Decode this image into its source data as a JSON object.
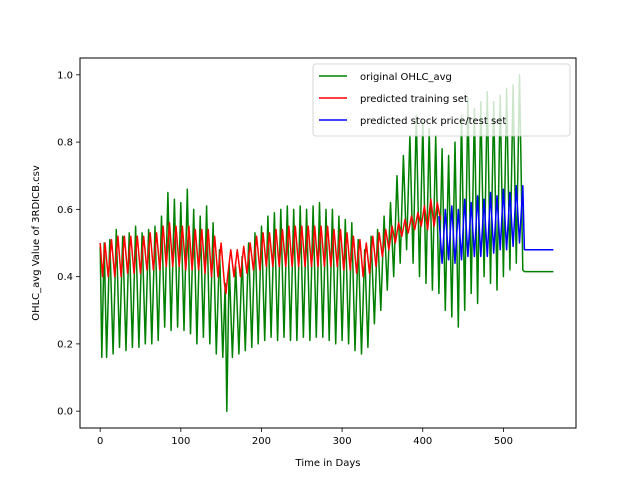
{
  "chart_data": {
    "type": "line",
    "xlabel": "Time in Days",
    "ylabel": "OHLC_avg Value of 3RDICB.csv",
    "xlim": [
      -25,
      590
    ],
    "ylim": [
      -0.05,
      1.05
    ],
    "xticks": [
      0,
      100,
      200,
      300,
      400,
      500
    ],
    "yticks": [
      0.0,
      0.2,
      0.4,
      0.6,
      0.8,
      1.0
    ],
    "grid": false,
    "legend_position": "top-right",
    "series": [
      {
        "name": "original OHLC_avg",
        "color": "#008000",
        "description_points": [
          [
            0,
            0.49
          ],
          [
            2,
            0.16
          ],
          [
            5,
            0.5
          ],
          [
            8,
            0.16
          ],
          [
            12,
            0.51
          ],
          [
            16,
            0.17
          ],
          [
            20,
            0.54
          ],
          [
            24,
            0.19
          ],
          [
            28,
            0.52
          ],
          [
            32,
            0.18
          ],
          [
            36,
            0.53
          ],
          [
            40,
            0.19
          ],
          [
            44,
            0.55
          ],
          [
            48,
            0.19
          ],
          [
            52,
            0.53
          ],
          [
            56,
            0.2
          ],
          [
            60,
            0.54
          ],
          [
            64,
            0.2
          ],
          [
            68,
            0.55
          ],
          [
            72,
            0.21
          ],
          [
            76,
            0.58
          ],
          [
            80,
            0.25
          ],
          [
            84,
            0.65
          ],
          [
            88,
            0.24
          ],
          [
            92,
            0.63
          ],
          [
            96,
            0.25
          ],
          [
            100,
            0.62
          ],
          [
            104,
            0.24
          ],
          [
            108,
            0.66
          ],
          [
            112,
            0.23
          ],
          [
            116,
            0.6
          ],
          [
            120,
            0.2
          ],
          [
            124,
            0.58
          ],
          [
            128,
            0.22
          ],
          [
            132,
            0.61
          ],
          [
            136,
            0.2
          ],
          [
            140,
            0.56
          ],
          [
            144,
            0.17
          ],
          [
            148,
            0.48
          ],
          [
            152,
            0.16
          ],
          [
            155,
            0.38
          ],
          [
            157,
            0.0
          ],
          [
            160,
            0.44
          ],
          [
            164,
            0.16
          ],
          [
            168,
            0.43
          ],
          [
            172,
            0.17
          ],
          [
            176,
            0.46
          ],
          [
            180,
            0.18
          ],
          [
            184,
            0.5
          ],
          [
            188,
            0.19
          ],
          [
            192,
            0.53
          ],
          [
            196,
            0.2
          ],
          [
            200,
            0.55
          ],
          [
            204,
            0.21
          ],
          [
            208,
            0.58
          ],
          [
            212,
            0.22
          ],
          [
            216,
            0.59
          ],
          [
            220,
            0.21
          ],
          [
            224,
            0.6
          ],
          [
            228,
            0.22
          ],
          [
            232,
            0.61
          ],
          [
            236,
            0.21
          ],
          [
            240,
            0.6
          ],
          [
            244,
            0.21
          ],
          [
            248,
            0.61
          ],
          [
            252,
            0.22
          ],
          [
            256,
            0.6
          ],
          [
            260,
            0.21
          ],
          [
            264,
            0.61
          ],
          [
            268,
            0.22
          ],
          [
            272,
            0.62
          ],
          [
            276,
            0.22
          ],
          [
            280,
            0.6
          ],
          [
            284,
            0.21
          ],
          [
            288,
            0.6
          ],
          [
            292,
            0.2
          ],
          [
            296,
            0.58
          ],
          [
            300,
            0.21
          ],
          [
            304,
            0.57
          ],
          [
            308,
            0.2
          ],
          [
            312,
            0.56
          ],
          [
            316,
            0.18
          ],
          [
            320,
            0.51
          ],
          [
            324,
            0.17
          ],
          [
            328,
            0.48
          ],
          [
            332,
            0.19
          ],
          [
            336,
            0.52
          ],
          [
            340,
            0.26
          ],
          [
            344,
            0.54
          ],
          [
            348,
            0.3
          ],
          [
            352,
            0.58
          ],
          [
            356,
            0.36
          ],
          [
            360,
            0.62
          ],
          [
            364,
            0.4
          ],
          [
            368,
            0.7
          ],
          [
            372,
            0.44
          ],
          [
            376,
            0.76
          ],
          [
            380,
            0.48
          ],
          [
            384,
            0.82
          ],
          [
            388,
            0.44
          ],
          [
            392,
            0.88
          ],
          [
            396,
            0.4
          ],
          [
            400,
            0.86
          ],
          [
            404,
            0.38
          ],
          [
            408,
            0.84
          ],
          [
            412,
            0.36
          ],
          [
            416,
            0.82
          ],
          [
            420,
            0.35
          ],
          [
            424,
            0.78
          ],
          [
            428,
            0.3
          ],
          [
            432,
            0.76
          ],
          [
            436,
            0.28
          ],
          [
            440,
            0.8
          ],
          [
            444,
            0.25
          ],
          [
            448,
            0.88
          ],
          [
            452,
            0.3
          ],
          [
            456,
            0.93
          ],
          [
            460,
            0.35
          ],
          [
            464,
            0.9
          ],
          [
            468,
            0.32
          ],
          [
            472,
            0.92
          ],
          [
            476,
            0.4
          ],
          [
            480,
            0.95
          ],
          [
            484,
            0.38
          ],
          [
            488,
            0.92
          ],
          [
            492,
            0.36
          ],
          [
            496,
            0.94
          ],
          [
            500,
            0.4
          ],
          [
            504,
            0.96
          ],
          [
            508,
            0.42
          ],
          [
            512,
            0.97
          ],
          [
            516,
            0.44
          ],
          [
            520,
            1.0
          ],
          [
            524,
            0.42
          ],
          [
            526,
            0.415
          ],
          [
            562,
            0.415
          ]
        ]
      },
      {
        "name": "predicted training set",
        "color": "#ff0000",
        "description_points": [
          [
            0,
            0.5
          ],
          [
            3,
            0.4
          ],
          [
            6,
            0.5
          ],
          [
            10,
            0.4
          ],
          [
            14,
            0.51
          ],
          [
            18,
            0.4
          ],
          [
            22,
            0.52
          ],
          [
            26,
            0.4
          ],
          [
            30,
            0.52
          ],
          [
            34,
            0.41
          ],
          [
            38,
            0.52
          ],
          [
            42,
            0.41
          ],
          [
            46,
            0.52
          ],
          [
            50,
            0.41
          ],
          [
            54,
            0.52
          ],
          [
            58,
            0.42
          ],
          [
            62,
            0.53
          ],
          [
            66,
            0.42
          ],
          [
            70,
            0.53
          ],
          [
            74,
            0.42
          ],
          [
            78,
            0.55
          ],
          [
            82,
            0.43
          ],
          [
            86,
            0.56
          ],
          [
            90,
            0.43
          ],
          [
            94,
            0.55
          ],
          [
            98,
            0.43
          ],
          [
            102,
            0.55
          ],
          [
            106,
            0.42
          ],
          [
            110,
            0.55
          ],
          [
            114,
            0.42
          ],
          [
            118,
            0.54
          ],
          [
            122,
            0.42
          ],
          [
            126,
            0.54
          ],
          [
            130,
            0.41
          ],
          [
            134,
            0.54
          ],
          [
            138,
            0.4
          ],
          [
            142,
            0.52
          ],
          [
            146,
            0.4
          ],
          [
            150,
            0.5
          ],
          [
            154,
            0.38
          ],
          [
            156,
            0.35
          ],
          [
            158,
            0.4
          ],
          [
            162,
            0.48
          ],
          [
            166,
            0.4
          ],
          [
            170,
            0.48
          ],
          [
            174,
            0.4
          ],
          [
            178,
            0.49
          ],
          [
            182,
            0.41
          ],
          [
            186,
            0.5
          ],
          [
            190,
            0.42
          ],
          [
            194,
            0.52
          ],
          [
            198,
            0.42
          ],
          [
            202,
            0.53
          ],
          [
            206,
            0.43
          ],
          [
            210,
            0.53
          ],
          [
            214,
            0.43
          ],
          [
            218,
            0.54
          ],
          [
            222,
            0.43
          ],
          [
            226,
            0.54
          ],
          [
            230,
            0.43
          ],
          [
            234,
            0.55
          ],
          [
            238,
            0.43
          ],
          [
            242,
            0.55
          ],
          [
            246,
            0.43
          ],
          [
            250,
            0.55
          ],
          [
            254,
            0.43
          ],
          [
            258,
            0.55
          ],
          [
            262,
            0.43
          ],
          [
            266,
            0.55
          ],
          [
            270,
            0.43
          ],
          [
            274,
            0.55
          ],
          [
            278,
            0.43
          ],
          [
            282,
            0.55
          ],
          [
            286,
            0.43
          ],
          [
            290,
            0.54
          ],
          [
            294,
            0.43
          ],
          [
            298,
            0.54
          ],
          [
            302,
            0.42
          ],
          [
            306,
            0.53
          ],
          [
            310,
            0.42
          ],
          [
            314,
            0.52
          ],
          [
            318,
            0.41
          ],
          [
            322,
            0.51
          ],
          [
            326,
            0.4
          ],
          [
            330,
            0.5
          ],
          [
            334,
            0.41
          ],
          [
            338,
            0.52
          ],
          [
            342,
            0.43
          ],
          [
            346,
            0.53
          ],
          [
            350,
            0.46
          ],
          [
            354,
            0.54
          ],
          [
            358,
            0.48
          ],
          [
            362,
            0.55
          ],
          [
            366,
            0.5
          ],
          [
            370,
            0.56
          ],
          [
            374,
            0.52
          ],
          [
            378,
            0.57
          ],
          [
            382,
            0.53
          ],
          [
            386,
            0.58
          ],
          [
            390,
            0.54
          ],
          [
            394,
            0.59
          ],
          [
            398,
            0.55
          ],
          [
            402,
            0.61
          ],
          [
            406,
            0.54
          ],
          [
            410,
            0.63
          ],
          [
            414,
            0.55
          ],
          [
            418,
            0.62
          ],
          [
            422,
            0.57
          ]
        ]
      },
      {
        "name": "predicted stock price/test set",
        "color": "#0000ff",
        "description_points": [
          [
            420,
            0.58
          ],
          [
            424,
            0.44
          ],
          [
            428,
            0.6
          ],
          [
            432,
            0.45
          ],
          [
            436,
            0.61
          ],
          [
            440,
            0.44
          ],
          [
            444,
            0.6
          ],
          [
            448,
            0.45
          ],
          [
            452,
            0.63
          ],
          [
            456,
            0.46
          ],
          [
            460,
            0.62
          ],
          [
            464,
            0.46
          ],
          [
            468,
            0.64
          ],
          [
            472,
            0.46
          ],
          [
            476,
            0.63
          ],
          [
            480,
            0.46
          ],
          [
            484,
            0.65
          ],
          [
            488,
            0.47
          ],
          [
            492,
            0.64
          ],
          [
            496,
            0.48
          ],
          [
            500,
            0.66
          ],
          [
            504,
            0.48
          ],
          [
            508,
            0.65
          ],
          [
            512,
            0.49
          ],
          [
            516,
            0.67
          ],
          [
            520,
            0.5
          ],
          [
            524,
            0.67
          ],
          [
            526,
            0.48
          ],
          [
            562,
            0.48
          ]
        ]
      }
    ]
  }
}
